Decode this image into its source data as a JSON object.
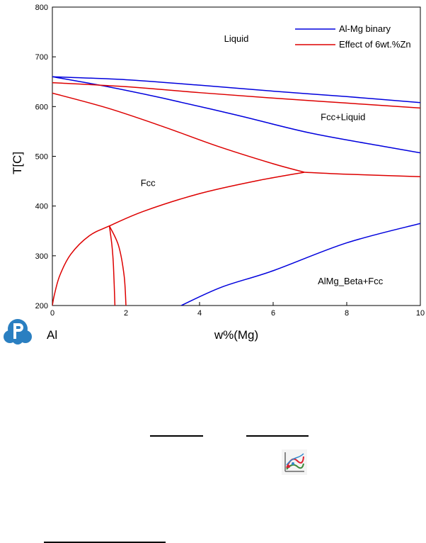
{
  "chart_data": {
    "type": "line",
    "xlabel": "w%(Mg)",
    "ylabel": "T[C]",
    "xlim": [
      0,
      10
    ],
    "ylim": [
      200,
      800
    ],
    "x_ticks": [
      "0",
      "2",
      "4",
      "6",
      "8",
      "10"
    ],
    "y_ticks": [
      "200",
      "300",
      "400",
      "500",
      "600",
      "700",
      "800"
    ],
    "x_tick_values": [
      0,
      2,
      4,
      6,
      8,
      10
    ],
    "y_tick_values": [
      200,
      300,
      400,
      500,
      600,
      700,
      800
    ],
    "extra_label": "Al",
    "grid": false,
    "legend_position": "top-right",
    "region_labels": [
      {
        "text": "Liquid",
        "x": 5.0,
        "y": 730
      },
      {
        "text": "Fcc+Liquid",
        "x": 7.9,
        "y": 573
      },
      {
        "text": "Fcc",
        "x": 2.6,
        "y": 440
      },
      {
        "text": "AlMg_Beta+Fcc",
        "x": 8.1,
        "y": 243
      }
    ],
    "series": [
      {
        "name": "Al-Mg binary",
        "color": "#0000dd",
        "segments": [
          [
            [
              0,
              660
            ],
            [
              2,
              654
            ],
            [
              4,
              643
            ],
            [
              6,
              631
            ],
            [
              8,
              620
            ],
            [
              10,
              608
            ]
          ],
          [
            [
              0,
              660
            ],
            [
              1.5,
              640
            ],
            [
              3,
              617
            ],
            [
              5,
              583
            ],
            [
              7,
              547
            ],
            [
              9,
              520
            ],
            [
              10,
              507
            ]
          ],
          [
            [
              3.5,
              200
            ],
            [
              4.6,
              237
            ],
            [
              6,
              270
            ],
            [
              8,
              326
            ],
            [
              10,
              365
            ]
          ]
        ]
      },
      {
        "name": "Effect of 6wt.%Zn",
        "color": "#dd0000",
        "segments": [
          [
            [
              0,
              648
            ],
            [
              2,
              640
            ],
            [
              4,
              628
            ],
            [
              6,
              617
            ],
            [
              8,
              607
            ],
            [
              10,
              597
            ]
          ],
          [
            [
              0,
              627
            ],
            [
              1.5,
              597
            ],
            [
              3,
              560
            ],
            [
              4.5,
              520
            ],
            [
              6,
              485
            ],
            [
              6.85,
              468
            ]
          ],
          [
            [
              6.85,
              468
            ],
            [
              8,
              464
            ],
            [
              10,
              459
            ]
          ],
          [
            [
              0,
              200
            ],
            [
              0.05,
              220
            ],
            [
              0.2,
              260
            ],
            [
              0.5,
              303
            ],
            [
              1,
              340
            ],
            [
              1.55,
              360
            ],
            [
              2.5,
              390
            ],
            [
              4,
              425
            ],
            [
              5.5,
              450
            ],
            [
              6.85,
              468
            ]
          ],
          [
            [
              1.55,
              360
            ],
            [
              1.62,
              320
            ],
            [
              1.66,
              280
            ],
            [
              1.7,
              200
            ]
          ],
          [
            [
              1.55,
              360
            ],
            [
              1.8,
              320
            ],
            [
              1.95,
              260
            ],
            [
              2.0,
              200
            ]
          ]
        ]
      }
    ]
  }
}
